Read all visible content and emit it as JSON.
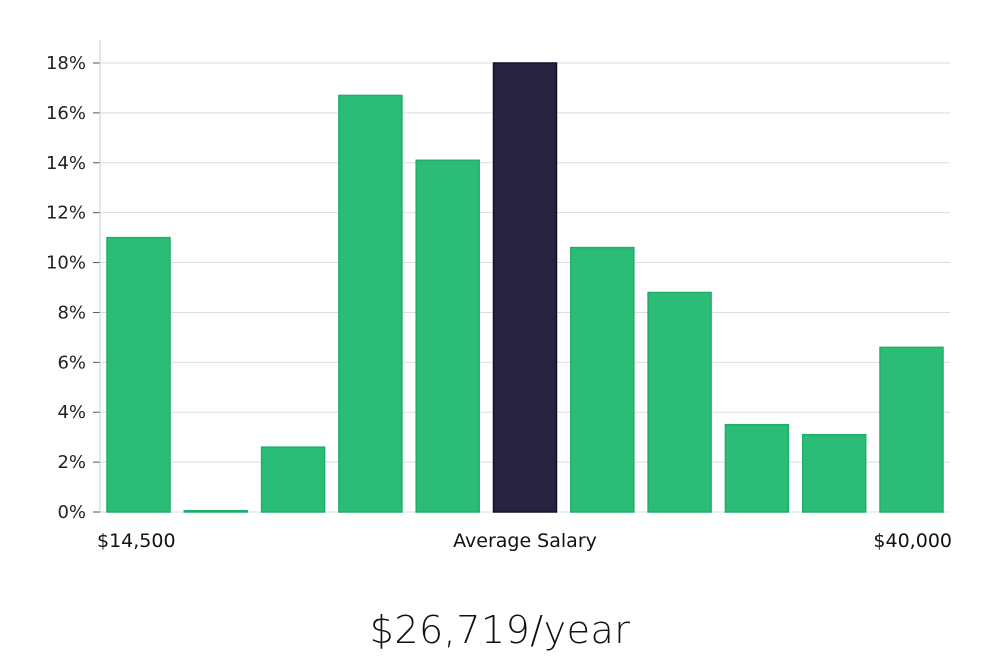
{
  "chart_data": {
    "type": "bar",
    "title": "",
    "ylabel": "",
    "xlabel": "Average Salary",
    "x_start_label": "$14,500",
    "x_end_label": "$40,000",
    "ylim": [
      0,
      18
    ],
    "yticks": [
      "0%",
      "2%",
      "4%",
      "6%",
      "8%",
      "10%",
      "12%",
      "14%",
      "16%",
      "18%"
    ],
    "yticks_values": [
      0,
      2,
      4,
      6,
      8,
      10,
      12,
      14,
      16,
      18
    ],
    "values": [
      11.0,
      0.05,
      2.6,
      16.7,
      14.1,
      18.0,
      10.6,
      8.8,
      3.5,
      3.1,
      6.6
    ],
    "highlight_index": 5,
    "grid": true
  },
  "colors": {
    "bar": "#2bbd77",
    "bar_stroke": "#1fae68",
    "highlight": "#27233f",
    "highlight_stroke": "#141126",
    "grid": "#dddddd",
    "axis": "#cccccc"
  },
  "summary": {
    "salary": "$26,719/year"
  }
}
